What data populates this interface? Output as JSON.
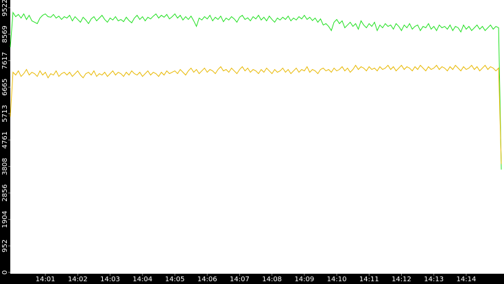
{
  "chart_data": {
    "type": "line",
    "xlim": [
      -5,
      910
    ],
    "xticks": [
      {
        "value": 60,
        "label": "14:01"
      },
      {
        "value": 120,
        "label": "14:02"
      },
      {
        "value": 180,
        "label": "14:03"
      },
      {
        "value": 240,
        "label": "14:04"
      },
      {
        "value": 300,
        "label": "14:05"
      },
      {
        "value": 360,
        "label": "14:06"
      },
      {
        "value": 420,
        "label": "14:07"
      },
      {
        "value": 480,
        "label": "14:08"
      },
      {
        "value": 540,
        "label": "14:09"
      },
      {
        "value": 600,
        "label": "14:10"
      },
      {
        "value": 660,
        "label": "14:11"
      },
      {
        "value": 720,
        "label": "14:12"
      },
      {
        "value": 780,
        "label": "14:13"
      },
      {
        "value": 840,
        "label": "14:14"
      }
    ],
    "ylim": [
      0,
      9800
    ],
    "yticks": [
      0,
      952,
      1904,
      2856,
      3808,
      4761,
      5713,
      6665,
      7617,
      8569,
      9522
    ],
    "x": [
      -5,
      0,
      5,
      10,
      15,
      20,
      25,
      30,
      35,
      40,
      45,
      50,
      55,
      60,
      65,
      70,
      75,
      80,
      85,
      90,
      95,
      100,
      105,
      110,
      115,
      120,
      125,
      130,
      135,
      140,
      145,
      150,
      155,
      160,
      165,
      170,
      175,
      180,
      185,
      190,
      195,
      200,
      205,
      210,
      215,
      220,
      225,
      230,
      235,
      240,
      245,
      250,
      255,
      260,
      265,
      270,
      275,
      280,
      285,
      290,
      295,
      300,
      305,
      310,
      315,
      320,
      325,
      330,
      335,
      340,
      345,
      350,
      355,
      360,
      365,
      370,
      375,
      380,
      385,
      390,
      395,
      400,
      405,
      410,
      415,
      420,
      425,
      430,
      435,
      440,
      445,
      450,
      455,
      460,
      465,
      470,
      475,
      480,
      485,
      490,
      495,
      500,
      505,
      510,
      515,
      520,
      525,
      530,
      535,
      540,
      545,
      550,
      555,
      560,
      565,
      570,
      575,
      580,
      585,
      590,
      595,
      600,
      605,
      610,
      615,
      620,
      625,
      630,
      635,
      640,
      645,
      650,
      655,
      660,
      665,
      670,
      675,
      680,
      685,
      690,
      695,
      700,
      705,
      710,
      715,
      720,
      725,
      730,
      735,
      740,
      745,
      750,
      755,
      760,
      765,
      770,
      775,
      780,
      785,
      790,
      795,
      800,
      805,
      810,
      815,
      820,
      825,
      830,
      835,
      840,
      845,
      850,
      855,
      860,
      865,
      870,
      875,
      880,
      885,
      890,
      895,
      900,
      905
    ],
    "series": [
      {
        "color": "#1fe01f",
        "values": [
          8100,
          9350,
          9200,
          9280,
          9150,
          9300,
          9100,
          9250,
          9050,
          9000,
          8950,
          9150,
          9250,
          9300,
          9200,
          9180,
          9280,
          9150,
          9220,
          9100,
          9200,
          9150,
          9250,
          9050,
          9200,
          9100,
          9000,
          9180,
          9080,
          8950,
          9120,
          9200,
          9050,
          9150,
          9250,
          9100,
          9000,
          9150,
          9080,
          9200,
          9050,
          9100,
          9020,
          9180,
          9060,
          8980,
          9150,
          9250,
          9100,
          9200,
          9050,
          9180,
          9120,
          9220,
          9300,
          9150,
          9250,
          9180,
          9280,
          9120,
          9200,
          9300,
          9150,
          9250,
          9080,
          9200,
          9100,
          9220,
          9050,
          8850,
          9150,
          9080,
          9200,
          9120,
          9250,
          9050,
          9180,
          9100,
          9220,
          9020,
          9150,
          9080,
          9200,
          9120,
          9000,
          9180,
          9250,
          9100,
          9160,
          9050,
          9200,
          9120,
          9250,
          9080,
          9180,
          9050,
          9220,
          9100,
          9000,
          9150,
          9080,
          9180,
          9100,
          9220,
          9050,
          9150,
          9080,
          9200,
          9120,
          9250,
          9100,
          9180,
          9060,
          9150,
          9000,
          9120,
          8900,
          8950,
          8850,
          8700,
          9000,
          9100,
          8950,
          9050,
          8800,
          8900,
          9000,
          8850,
          8950,
          8750,
          9050,
          8900,
          8800,
          8950,
          8850,
          9000,
          8700,
          8900,
          8800,
          8950,
          8850,
          8900,
          8750,
          8950,
          8850,
          8700,
          8900,
          8800,
          8950,
          8750,
          8850,
          8900,
          8700,
          8850,
          8800,
          8950,
          8750,
          8850,
          8700,
          8900,
          8800,
          8850,
          8750,
          8900,
          8700,
          8850,
          8800,
          8650,
          8900,
          8750,
          8850,
          8700,
          8800,
          8900,
          8750,
          8850,
          8700,
          8800,
          8900,
          8750,
          8850,
          8800,
          3700
        ]
      },
      {
        "color": "#e8b800",
        "values": [
          5600,
          7200,
          7100,
          7250,
          7050,
          7150,
          7300,
          7100,
          7200,
          7150,
          7050,
          7250,
          7100,
          7200,
          7000,
          7150,
          7100,
          7250,
          7050,
          7150,
          7200,
          7100,
          7200,
          7050,
          7150,
          7250,
          7100,
          7000,
          7150,
          7200,
          7100,
          7250,
          7050,
          7150,
          7100,
          7200,
          7050,
          7150,
          7250,
          7100,
          7200,
          7150,
          7050,
          7200,
          7100,
          7250,
          7150,
          7100,
          7200,
          7050,
          7150,
          7250,
          7100,
          7200,
          7150,
          7050,
          7200,
          7100,
          7250,
          7150,
          7200,
          7250,
          7150,
          7300,
          7200,
          7100,
          7250,
          7350,
          7200,
          7300,
          7150,
          7250,
          7350,
          7200,
          7300,
          7250,
          7150,
          7300,
          7400,
          7250,
          7300,
          7200,
          7350,
          7250,
          7150,
          7300,
          7400,
          7250,
          7350,
          7200,
          7300,
          7250,
          7150,
          7300,
          7200,
          7350,
          7250,
          7150,
          7300,
          7200,
          7250,
          7350,
          7200,
          7300,
          7150,
          7250,
          7350,
          7200,
          7300,
          7250,
          7400,
          7200,
          7300,
          7250,
          7150,
          7300,
          7350,
          7250,
          7300,
          7200,
          7350,
          7250,
          7300,
          7400,
          7250,
          7350,
          7200,
          7300,
          7450,
          7300,
          7400,
          7350,
          7250,
          7400,
          7300,
          7350,
          7250,
          7400,
          7300,
          7350,
          7450,
          7300,
          7400,
          7250,
          7350,
          7450,
          7300,
          7400,
          7350,
          7250,
          7400,
          7300,
          7450,
          7350,
          7250,
          7400,
          7300,
          7350,
          7450,
          7300,
          7400,
          7350,
          7250,
          7400,
          7300,
          7450,
          7350,
          7250,
          7400,
          7300,
          7350,
          7450,
          7300,
          7400,
          7250,
          7350,
          7450,
          7300,
          7400,
          7350,
          7250,
          7350,
          3900
        ]
      }
    ]
  }
}
